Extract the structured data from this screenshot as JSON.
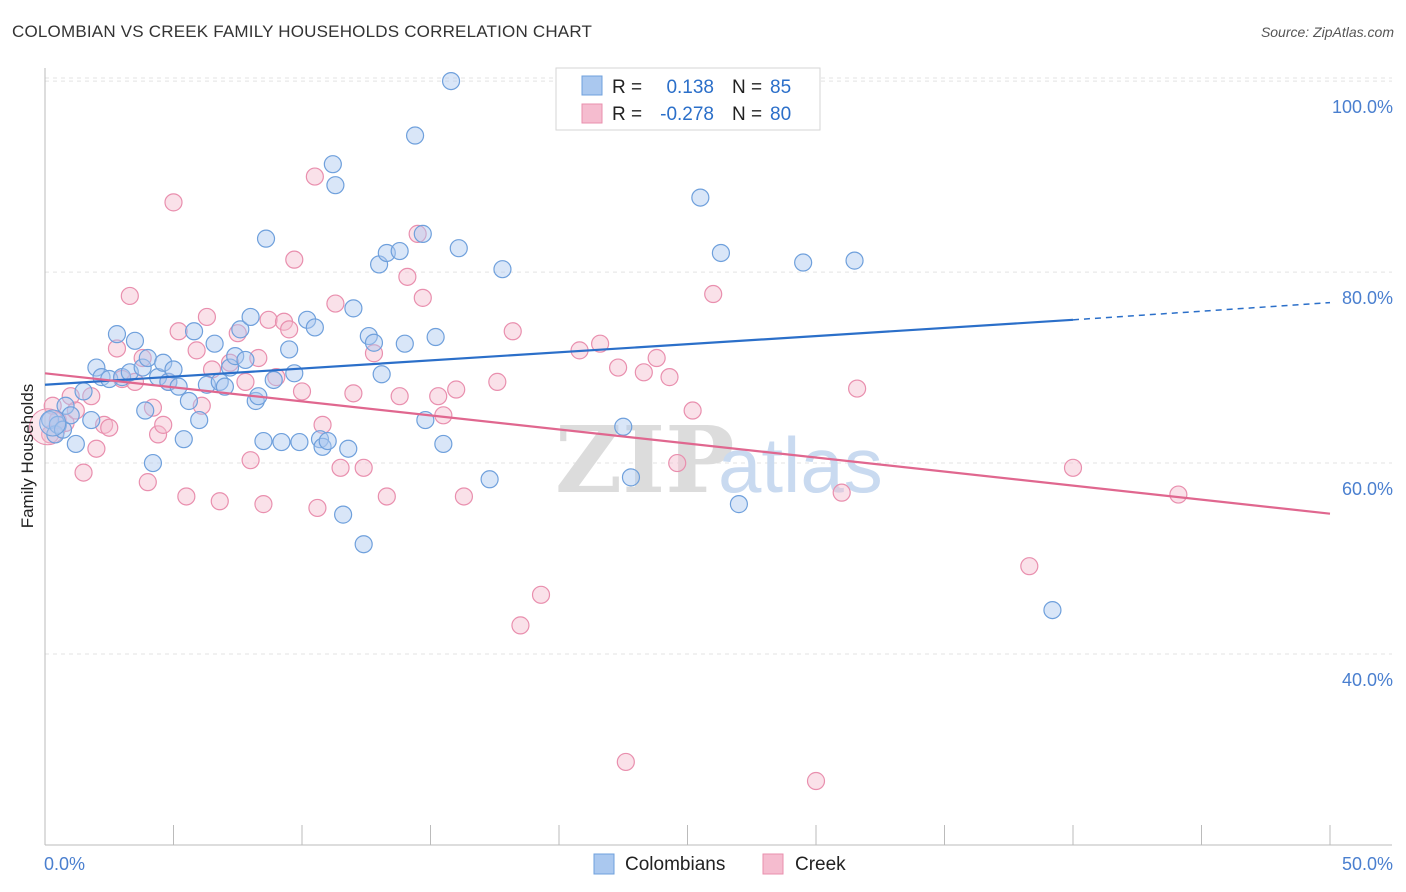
{
  "header": {
    "title": "COLOMBIAN VS CREEK FAMILY HOUSEHOLDS CORRELATION CHART",
    "source": "Source: ZipAtlas.com"
  },
  "watermark": {
    "zip": "ZIP",
    "atlas": "atlas"
  },
  "colors": {
    "blue": "#6fa0dc",
    "blue_fill": "#aac8ef",
    "blue_line": "#2b6fc9",
    "pink": "#e98fae",
    "pink_fill": "#f5bccf",
    "pink_line": "#e0678f",
    "axis_label": "#4a7fcf",
    "grid": "#e3e3e3"
  },
  "chart_data": {
    "type": "scatter",
    "title": "COLOMBIAN VS CREEK FAMILY HOUSEHOLDS CORRELATION CHART",
    "xlabel": "",
    "ylabel": "Family Households",
    "xlim": [
      0,
      50
    ],
    "ylim": [
      20,
      102
    ],
    "x_ticks": [
      "0.0%",
      "50.0%"
    ],
    "y_ticks": [
      {
        "value": 100,
        "label": "100.0%"
      },
      {
        "value": 80,
        "label": "80.0%"
      },
      {
        "value": 60,
        "label": "60.0%"
      },
      {
        "value": 40,
        "label": "40.0%"
      }
    ],
    "grid": true,
    "legend_position": "top-center",
    "stats": [
      {
        "r_label": "R =",
        "r_value": "0.138",
        "n_label": "N =",
        "n_value": "85"
      },
      {
        "r_label": "R =",
        "r_value": "-0.278",
        "n_label": "N =",
        "n_value": "80"
      }
    ],
    "series": [
      {
        "name": "Colombians",
        "trend": {
          "x0": 0,
          "y0": 68.2,
          "x1": 40,
          "y1": 75.0,
          "dash_to_x": 50,
          "dash_to_y": 76.8
        },
        "points": [
          [
            0.2,
            64.5
          ],
          [
            0.4,
            63.0
          ],
          [
            0.5,
            64.0
          ],
          [
            0.7,
            63.5
          ],
          [
            0.8,
            66.0
          ],
          [
            1.0,
            65.0
          ],
          [
            1.2,
            62.0
          ],
          [
            1.5,
            67.5
          ],
          [
            1.8,
            64.5
          ],
          [
            2.0,
            70.0
          ],
          [
            2.2,
            69.0
          ],
          [
            2.5,
            68.8
          ],
          [
            2.8,
            73.5
          ],
          [
            3.0,
            69.0
          ],
          [
            3.3,
            69.5
          ],
          [
            3.5,
            72.8
          ],
          [
            3.8,
            70.0
          ],
          [
            3.9,
            65.5
          ],
          [
            4.0,
            71.0
          ],
          [
            4.2,
            60.0
          ],
          [
            4.4,
            69.0
          ],
          [
            4.6,
            70.5
          ],
          [
            4.8,
            68.5
          ],
          [
            5.0,
            69.8
          ],
          [
            5.2,
            68.0
          ],
          [
            5.4,
            62.5
          ],
          [
            5.6,
            66.5
          ],
          [
            5.8,
            73.8
          ],
          [
            6.0,
            64.5
          ],
          [
            6.3,
            68.2
          ],
          [
            6.6,
            72.5
          ],
          [
            6.8,
            68.5
          ],
          [
            7.0,
            68.0
          ],
          [
            7.2,
            70.0
          ],
          [
            7.4,
            71.2
          ],
          [
            7.6,
            74.0
          ],
          [
            7.8,
            70.8
          ],
          [
            8.0,
            75.3
          ],
          [
            8.2,
            66.5
          ],
          [
            8.3,
            67.0
          ],
          [
            8.5,
            62.3
          ],
          [
            8.6,
            83.5
          ],
          [
            8.9,
            68.7
          ],
          [
            9.2,
            62.2
          ],
          [
            9.5,
            71.9
          ],
          [
            9.7,
            69.4
          ],
          [
            9.9,
            62.2
          ],
          [
            10.2,
            75.0
          ],
          [
            10.5,
            74.2
          ],
          [
            10.7,
            62.5
          ],
          [
            10.8,
            61.7
          ],
          [
            11.0,
            62.3
          ],
          [
            11.2,
            91.3
          ],
          [
            11.3,
            89.1
          ],
          [
            11.6,
            54.6
          ],
          [
            11.8,
            61.5
          ],
          [
            12.0,
            76.2
          ],
          [
            12.4,
            51.5
          ],
          [
            12.6,
            73.3
          ],
          [
            12.8,
            72.6
          ],
          [
            13.0,
            80.8
          ],
          [
            13.1,
            69.3
          ],
          [
            13.3,
            82.0
          ],
          [
            13.8,
            82.2
          ],
          [
            14.0,
            72.5
          ],
          [
            14.4,
            94.3
          ],
          [
            14.7,
            84.0
          ],
          [
            14.8,
            64.5
          ],
          [
            15.2,
            73.2
          ],
          [
            15.5,
            62.0
          ],
          [
            15.8,
            100.0
          ],
          [
            16.1,
            82.5
          ],
          [
            17.3,
            58.3
          ],
          [
            17.8,
            80.3
          ],
          [
            22.5,
            63.8
          ],
          [
            22.8,
            58.5
          ],
          [
            25.5,
            87.8
          ],
          [
            26.3,
            82.0
          ],
          [
            27.0,
            55.7
          ],
          [
            29.5,
            81.0
          ],
          [
            31.5,
            81.2
          ],
          [
            39.2,
            44.6
          ]
        ]
      },
      {
        "name": "Creek",
        "trend": {
          "x0": 0,
          "y0": 69.4,
          "x1": 50,
          "y1": 54.7
        },
        "points": [
          [
            0.2,
            63.0
          ],
          [
            0.3,
            66.0
          ],
          [
            0.5,
            64.5
          ],
          [
            0.8,
            64.2
          ],
          [
            1.0,
            67.0
          ],
          [
            1.2,
            65.5
          ],
          [
            1.5,
            59.0
          ],
          [
            1.8,
            67.0
          ],
          [
            2.0,
            61.5
          ],
          [
            2.3,
            64.0
          ],
          [
            2.5,
            63.7
          ],
          [
            2.8,
            72.0
          ],
          [
            3.0,
            68.8
          ],
          [
            3.3,
            77.5
          ],
          [
            3.5,
            68.5
          ],
          [
            3.8,
            71.0
          ],
          [
            4.0,
            58.0
          ],
          [
            4.2,
            65.8
          ],
          [
            4.4,
            63.0
          ],
          [
            4.6,
            64.0
          ],
          [
            4.8,
            68.5
          ],
          [
            5.0,
            87.3
          ],
          [
            5.2,
            73.8
          ],
          [
            5.5,
            56.5
          ],
          [
            5.9,
            71.8
          ],
          [
            6.1,
            66.0
          ],
          [
            6.3,
            75.3
          ],
          [
            6.5,
            69.8
          ],
          [
            6.8,
            56.0
          ],
          [
            7.2,
            70.5
          ],
          [
            7.5,
            73.6
          ],
          [
            7.8,
            68.5
          ],
          [
            8.0,
            60.3
          ],
          [
            8.3,
            71.0
          ],
          [
            8.5,
            55.7
          ],
          [
            8.7,
            75.0
          ],
          [
            9.0,
            69.0
          ],
          [
            9.3,
            74.8
          ],
          [
            9.5,
            74.0
          ],
          [
            9.7,
            81.3
          ],
          [
            10.0,
            67.5
          ],
          [
            10.5,
            90.0
          ],
          [
            10.6,
            55.3
          ],
          [
            10.8,
            64.0
          ],
          [
            11.3,
            76.7
          ],
          [
            11.5,
            59.5
          ],
          [
            12.0,
            67.3
          ],
          [
            12.4,
            59.5
          ],
          [
            12.8,
            71.5
          ],
          [
            13.3,
            56.5
          ],
          [
            13.8,
            67.0
          ],
          [
            14.1,
            79.5
          ],
          [
            14.5,
            84.0
          ],
          [
            14.7,
            77.3
          ],
          [
            15.3,
            67.0
          ],
          [
            15.5,
            65.0
          ],
          [
            16.0,
            67.7
          ],
          [
            16.3,
            56.5
          ],
          [
            17.6,
            68.5
          ],
          [
            18.2,
            73.8
          ],
          [
            18.5,
            43.0
          ],
          [
            19.3,
            46.2
          ],
          [
            20.8,
            71.8
          ],
          [
            21.6,
            72.5
          ],
          [
            22.3,
            70.0
          ],
          [
            22.6,
            28.7
          ],
          [
            23.3,
            69.5
          ],
          [
            23.8,
            71.0
          ],
          [
            24.3,
            69.0
          ],
          [
            24.6,
            60.0
          ],
          [
            25.2,
            65.5
          ],
          [
            26.0,
            77.7
          ],
          [
            30.0,
            26.7
          ],
          [
            31.0,
            56.9
          ],
          [
            31.6,
            67.8
          ],
          [
            38.3,
            49.2
          ],
          [
            40.0,
            59.5
          ],
          [
            44.1,
            56.7
          ]
        ]
      }
    ]
  }
}
